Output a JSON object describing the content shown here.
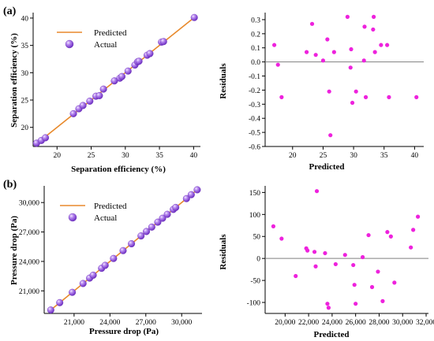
{
  "colors": {
    "predicted_line": "#e8892b",
    "actual_point": "#9a5ae8",
    "residual_point": "#ee22dd",
    "zero_line": "#7f7f7f"
  },
  "chart_data": [
    {
      "id": "a_left",
      "panel_label": "(a)",
      "type": "scatter",
      "xlabel": "Separation efficiency (%)",
      "ylabel": "Separation efficiency (%)",
      "xlim": [
        16.5,
        41
      ],
      "ylim": [
        16.5,
        41
      ],
      "xticks": [
        20,
        25,
        30,
        35,
        40
      ],
      "yticks": [
        20,
        25,
        30,
        35,
        40
      ],
      "x_tick_labels": [
        "20",
        "25",
        "30",
        "35",
        "40"
      ],
      "y_tick_labels": [
        "20",
        "25",
        "30",
        "35",
        "40"
      ],
      "legend": {
        "position": "top-left",
        "entries": [
          "Predicted",
          "Actual"
        ]
      },
      "series": [
        {
          "name": "Predicted",
          "kind": "line",
          "x": [
            16.8,
            40.2
          ],
          "y": [
            16.8,
            40.2
          ]
        },
        {
          "name": "Actual",
          "kind": "scatter",
          "x": [
            17.0,
            17.7,
            18.3,
            22.4,
            23.2,
            23.8,
            24.8,
            25.7,
            26.2,
            26.8,
            28.4,
            29.2,
            29.5,
            30.4,
            31.4,
            31.8,
            32.0,
            33.2,
            33.6,
            35.3,
            35.6,
            40.1
          ],
          "y": [
            17.1,
            17.6,
            18.1,
            22.5,
            23.4,
            24.0,
            24.8,
            25.7,
            25.8,
            27.0,
            28.5,
            29.0,
            29.3,
            30.3,
            31.4,
            32.0,
            32.1,
            33.2,
            33.5,
            35.6,
            35.7,
            40.1
          ]
        }
      ]
    },
    {
      "id": "a_right",
      "type": "scatter",
      "xlabel": "Predicted",
      "ylabel": "Residuals",
      "xlim": [
        15.5,
        41.5
      ],
      "ylim": [
        -0.6,
        0.35
      ],
      "xticks": [
        20,
        25,
        30,
        35,
        40
      ],
      "yticks": [
        0.3,
        0.2,
        0.1,
        0.0,
        -0.1,
        -0.2,
        -0.3,
        -0.4,
        -0.5,
        -0.6
      ],
      "x_tick_labels": [
        "20",
        "25",
        "30",
        "35",
        "40"
      ],
      "y_tick_labels": [
        "0.3",
        "0.2",
        "0.1",
        "0.0",
        "-0.1",
        "-0.2",
        "-0.3",
        "-0.4",
        "-0.5",
        "-0.6"
      ],
      "zero_line": 0,
      "series": [
        {
          "name": "",
          "kind": "scatter",
          "x": [
            17.0,
            17.6,
            18.2,
            22.3,
            23.2,
            23.8,
            25.0,
            25.7,
            26.0,
            26.2,
            26.8,
            29.0,
            29.5,
            29.6,
            29.8,
            30.4,
            31.7,
            31.8,
            32.0,
            33.2,
            33.3,
            33.5,
            34.5,
            35.5,
            35.8,
            40.3
          ],
          "y": [
            0.12,
            -0.02,
            -0.25,
            0.07,
            0.27,
            0.05,
            0.01,
            0.16,
            -0.21,
            -0.52,
            0.07,
            0.32,
            -0.04,
            0.09,
            -0.29,
            -0.21,
            0.01,
            0.25,
            -0.25,
            0.23,
            0.32,
            0.07,
            0.12,
            0.12,
            -0.25,
            -0.25
          ]
        }
      ]
    },
    {
      "id": "b_left",
      "panel_label": "(b)",
      "type": "scatter",
      "xlabel": "Pressure drop (Pa)",
      "ylabel": "Pressure drop (Pa)",
      "xlim": [
        18500,
        31700
      ],
      "ylim": [
        18700,
        31700
      ],
      "xticks": [
        21000,
        24000,
        27000,
        30000
      ],
      "yticks": [
        21000,
        24000,
        27000,
        30000
      ],
      "x_tick_labels": [
        "21,000",
        "24,000",
        "27,000",
        "30,000"
      ],
      "y_tick_labels": [
        "21,000",
        "24,000",
        "27,000",
        "30,000"
      ],
      "legend": {
        "position": "top-left",
        "entries": [
          "Predicted",
          "Actual"
        ]
      },
      "series": [
        {
          "name": "Predicted",
          "kind": "line",
          "x": [
            19000,
            31400
          ],
          "y": [
            19000,
            31400
          ]
        },
        {
          "name": "Actual",
          "kind": "scatter",
          "x": [
            19050,
            19800,
            20850,
            21750,
            22300,
            22600,
            23300,
            23600,
            24300,
            25100,
            25800,
            26600,
            27050,
            27500,
            28000,
            28400,
            28800,
            29300,
            29500,
            30400,
            30800,
            31300
          ],
          "y": [
            19050,
            19800,
            20850,
            21750,
            22300,
            22600,
            23300,
            23600,
            24300,
            25100,
            25800,
            26600,
            27050,
            27500,
            28000,
            28400,
            28800,
            29300,
            29500,
            30400,
            30800,
            31300
          ]
        }
      ]
    },
    {
      "id": "b_right",
      "type": "scatter",
      "xlabel": "Predicted",
      "ylabel": "Residuals",
      "xlim": [
        18300,
        32200
      ],
      "ylim": [
        -125,
        165
      ],
      "xticks": [
        20000,
        22000,
        24000,
        26000,
        28000,
        30000,
        32000
      ],
      "yticks": [
        150,
        100,
        50,
        0,
        -50,
        -100
      ],
      "x_tick_labels": [
        "20,000",
        "22,000",
        "24,000",
        "26,000",
        "28,000",
        "30,000",
        "32,000"
      ],
      "y_tick_labels": [
        "150",
        "100",
        "50",
        "0",
        "-50",
        "-100"
      ],
      "zero_line": 0,
      "series": [
        {
          "name": "",
          "kind": "scatter",
          "x": [
            19000,
            19700,
            20900,
            21800,
            21900,
            22500,
            22600,
            22700,
            23400,
            23600,
            23700,
            24300,
            25100,
            25800,
            25900,
            26000,
            26600,
            27100,
            27400,
            27900,
            28300,
            28700,
            29000,
            29300,
            30700,
            30900,
            31300
          ],
          "y": [
            73,
            45,
            -40,
            23,
            18,
            15,
            -18,
            153,
            12,
            -103,
            -112,
            -13,
            8,
            -15,
            -60,
            -103,
            3,
            53,
            -65,
            -30,
            -97,
            60,
            50,
            -55,
            25,
            65,
            95
          ]
        }
      ]
    }
  ]
}
